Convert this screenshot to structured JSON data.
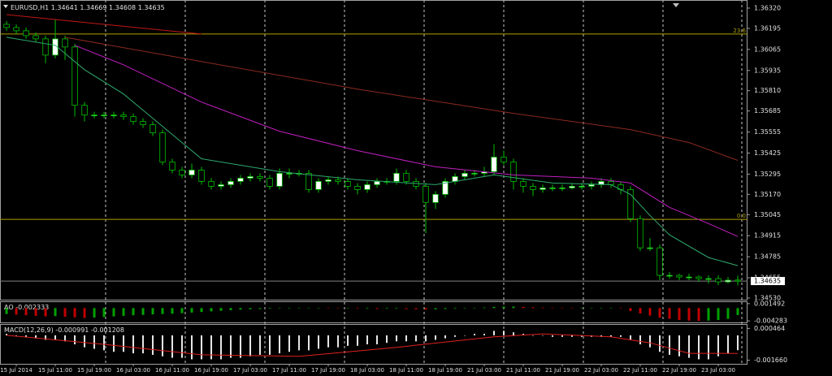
{
  "chart_data": [
    {
      "type": "candlestick",
      "title": "EURUSD,H1",
      "xlim": [
        -0.67,
        76
      ],
      "ylim": [
        1.34515,
        1.3637
      ],
      "yticks": [
        {
          "value": 1.3632,
          "label": "1.36320"
        },
        {
          "value": 1.36195,
          "label": "1.36195"
        },
        {
          "value": 1.36065,
          "label": "1.36065"
        },
        {
          "value": 1.35935,
          "label": "1.35935"
        },
        {
          "value": 1.3581,
          "label": "1.35810"
        },
        {
          "value": 1.35685,
          "label": "1.35685"
        },
        {
          "value": 1.35555,
          "label": "1.35555"
        },
        {
          "value": 1.35425,
          "label": "1.35425"
        },
        {
          "value": 1.35295,
          "label": "1.35295"
        },
        {
          "value": 1.3517,
          "label": "1.35170"
        },
        {
          "value": 1.35045,
          "label": "1.35045"
        },
        {
          "value": 1.34915,
          "label": "1.34915"
        },
        {
          "value": 1.34785,
          "label": "1.34785"
        },
        {
          "value": 1.34655,
          "label": "1.34655"
        },
        {
          "value": 1.3453,
          "label": "1.34530"
        }
      ],
      "color_up": "#ffffff",
      "color_down": "#000000",
      "wick_color": "#00c000",
      "open": [
        1.3622,
        1.362,
        1.3618,
        1.3615,
        1.3613,
        1.3603,
        1.3613,
        1.3608,
        1.3572,
        1.3566,
        1.3566,
        1.3566,
        1.3566,
        1.3565,
        1.3562,
        1.356,
        1.3555,
        1.3537,
        1.3532,
        1.3529,
        1.3532,
        1.3525,
        1.3522,
        1.3523,
        1.3525,
        1.3527,
        1.3528,
        1.3527,
        1.3522,
        1.353,
        1.353,
        1.353,
        1.352,
        1.3525,
        1.3526,
        1.3525,
        1.3522,
        1.352,
        1.3523,
        1.3525,
        1.3525,
        1.353,
        1.3525,
        1.3522,
        1.3512,
        1.3517,
        1.3525,
        1.3528,
        1.353,
        1.353,
        1.3531,
        1.354,
        1.3537,
        1.3525,
        1.3522,
        1.352,
        1.3521,
        1.3521,
        1.3521,
        1.3522,
        1.3522,
        1.3523,
        1.3525,
        1.3523,
        1.352,
        1.3502,
        1.3484,
        1.3484,
        1.3467,
        1.3467,
        1.3466,
        1.3466,
        1.3465,
        1.3465,
        1.3463,
        1.34641
      ],
      "high": [
        1.3624,
        1.3622,
        1.362,
        1.3617,
        1.3615,
        1.3625,
        1.3615,
        1.361,
        1.3574,
        1.3568,
        1.3568,
        1.3568,
        1.3568,
        1.3567,
        1.3564,
        1.3562,
        1.3557,
        1.3539,
        1.3534,
        1.3536,
        1.3534,
        1.3527,
        1.3525,
        1.3527,
        1.3529,
        1.353,
        1.353,
        1.3529,
        1.3533,
        1.3533,
        1.3532,
        1.3532,
        1.3527,
        1.3528,
        1.3528,
        1.3527,
        1.3524,
        1.3525,
        1.3527,
        1.3527,
        1.3533,
        1.3532,
        1.3527,
        1.3524,
        1.3519,
        1.3527,
        1.353,
        1.3532,
        1.3532,
        1.3534,
        1.3548,
        1.3544,
        1.3539,
        1.3527,
        1.3524,
        1.3523,
        1.3523,
        1.3523,
        1.3524,
        1.3524,
        1.3525,
        1.3527,
        1.3527,
        1.3525,
        1.3522,
        1.3504,
        1.349,
        1.3486,
        1.3469,
        1.3468,
        1.3468,
        1.3467,
        1.3467,
        1.3467,
        1.3466,
        1.34669
      ],
      "low": [
        1.3618,
        1.3616,
        1.3613,
        1.3611,
        1.3598,
        1.3601,
        1.36,
        1.3565,
        1.3562,
        1.3564,
        1.3564,
        1.3564,
        1.3563,
        1.356,
        1.3558,
        1.3553,
        1.3535,
        1.353,
        1.3527,
        1.3527,
        1.3523,
        1.352,
        1.352,
        1.3521,
        1.3523,
        1.3525,
        1.3525,
        1.352,
        1.352,
        1.3527,
        1.3528,
        1.3518,
        1.3518,
        1.3523,
        1.3523,
        1.352,
        1.3517,
        1.3518,
        1.3521,
        1.3523,
        1.3523,
        1.3523,
        1.352,
        1.3493,
        1.3508,
        1.3515,
        1.3523,
        1.3526,
        1.3528,
        1.3528,
        1.3529,
        1.3535,
        1.352,
        1.3518,
        1.3516,
        1.3518,
        1.3519,
        1.3519,
        1.352,
        1.352,
        1.352,
        1.3521,
        1.3521,
        1.3517,
        1.35,
        1.3482,
        1.3482,
        1.3464,
        1.3465,
        1.3464,
        1.3464,
        1.3463,
        1.3462,
        1.3461,
        1.3462,
        1.34608
      ],
      "close": [
        1.362,
        1.3618,
        1.3615,
        1.3613,
        1.3603,
        1.3613,
        1.3608,
        1.3572,
        1.3566,
        1.3566,
        1.3566,
        1.3566,
        1.3565,
        1.3562,
        1.356,
        1.3555,
        1.3537,
        1.3532,
        1.3529,
        1.3532,
        1.3525,
        1.3522,
        1.3523,
        1.3525,
        1.3527,
        1.3528,
        1.3527,
        1.3522,
        1.353,
        1.353,
        1.353,
        1.352,
        1.3525,
        1.3526,
        1.3525,
        1.3522,
        1.352,
        1.3523,
        1.3525,
        1.3525,
        1.353,
        1.3525,
        1.3522,
        1.3512,
        1.3517,
        1.3525,
        1.3528,
        1.353,
        1.353,
        1.3531,
        1.354,
        1.3537,
        1.3525,
        1.3522,
        1.352,
        1.3521,
        1.3521,
        1.3521,
        1.3522,
        1.3522,
        1.3523,
        1.3525,
        1.3523,
        1.352,
        1.3502,
        1.3484,
        1.3484,
        1.3467,
        1.3467,
        1.3466,
        1.3466,
        1.3465,
        1.3465,
        1.3463,
        1.3464,
        1.34635
      ],
      "series": [
        {
          "color": "#2eaa6e",
          "x": [
            0,
            5,
            8,
            12,
            16,
            20,
            28,
            36,
            44,
            50,
            56,
            62,
            64,
            66,
            68,
            72,
            75
          ],
          "values": [
            1.3614,
            1.3609,
            1.3594,
            1.3579,
            1.3559,
            1.3539,
            1.3531,
            1.3526,
            1.3523,
            1.3529,
            1.3524,
            1.3523,
            1.3517,
            1.3504,
            1.3492,
            1.3478,
            1.3473
          ]
        },
        {
          "color": "#c020c0",
          "x": [
            7,
            12,
            20,
            28,
            36,
            44,
            52,
            60,
            64,
            68,
            72,
            75
          ],
          "values": [
            1.3609,
            1.3597,
            1.3574,
            1.3556,
            1.3544,
            1.3534,
            1.3529,
            1.3527,
            1.3524,
            1.3509,
            1.3499,
            1.3491
          ]
        },
        {
          "color": "#8b2a20",
          "x": [
            6,
            20,
            36,
            52,
            64,
            70,
            75
          ],
          "values": [
            1.3614,
            1.3599,
            1.3582,
            1.3567,
            1.3557,
            1.3549,
            1.3538
          ]
        },
        {
          "color": "#c01818",
          "x": [
            0,
            20
          ],
          "values": [
            1.3628,
            1.3616
          ]
        }
      ],
      "levels": [
        {
          "value": 1.3616,
          "label": "23.6"
        },
        {
          "value": 1.35016,
          "label": "0.0"
        }
      ],
      "level_color": "#b0a000",
      "last_price": 1.34635
    },
    {
      "type": "bar",
      "title": "AO",
      "xlim": [
        -0.67,
        76
      ],
      "ylim": [
        -0.0048,
        0.002
      ],
      "yticks": [
        0.001492,
        -0.004283
      ],
      "color_up": "#00a000",
      "color_down": "#c00000",
      "values": [
        -0.002,
        -0.0022,
        -0.0024,
        -0.0026,
        -0.0028,
        -0.0027,
        -0.0029,
        -0.0031,
        -0.0033,
        -0.0032,
        -0.003,
        -0.0028,
        -0.0026,
        -0.0024,
        -0.0023,
        -0.0021,
        -0.002,
        -0.0019,
        -0.0017,
        -0.0015,
        -0.0013,
        -0.0011,
        -0.0009,
        -0.0007,
        -0.0005,
        -0.0004,
        -0.0003,
        -0.0002,
        -0.0001,
        -0.0001,
        0,
        0.0001,
        0.0001,
        0,
        -0.0001,
        -0.0001,
        -0.0002,
        -0.0002,
        -0.0003,
        -0.0002,
        -0.0002,
        -0.0003,
        -0.0004,
        -0.0005,
        -0.0004,
        -0.0003,
        -0.0002,
        -0.0001,
        0,
        0.0002,
        0.0004,
        0.0005,
        0.0005,
        0.0004,
        0.0003,
        0.0002,
        0.0001,
        0,
        -0.0001,
        -0.0001,
        -0.0001,
        0,
        0,
        -0.0001,
        -0.001,
        -0.0018,
        -0.0025,
        -0.0032,
        -0.0036,
        -0.004,
        -0.0042,
        -0.0043,
        -0.0042,
        -0.004,
        -0.0036,
        -0.002333
      ]
    },
    {
      "type": "macd",
      "title": "MACD(12,26,9)",
      "xlim": [
        -0.67,
        76
      ],
      "ylim": [
        -0.0019,
        0.0007
      ],
      "yticks": [
        0.000464,
        {
          "value": -0.00166,
          "label": "-0.001660"
        }
      ],
      "color": "#e8e8e8",
      "signal_color": "#e02020",
      "values": [
        0.0001,
        0,
        -0.0001,
        -0.0002,
        -0.0003,
        -0.0003,
        -0.0004,
        -0.0006,
        -0.0008,
        -0.0009,
        -0.001,
        -0.0011,
        -0.0011,
        -0.0012,
        -0.0012,
        -0.0013,
        -0.0014,
        -0.0015,
        -0.0015,
        -0.0016,
        -0.0016,
        -0.0016,
        -0.0016,
        -0.0015,
        -0.0015,
        -0.0014,
        -0.0013,
        -0.0013,
        -0.0012,
        -0.0011,
        -0.001,
        -0.001,
        -0.0009,
        -0.0008,
        -0.0008,
        -0.0007,
        -0.0007,
        -0.0006,
        -0.0006,
        -0.0005,
        -0.0004,
        -0.0004,
        -0.0004,
        -0.0004,
        -0.0003,
        -0.0002,
        -0.0001,
        0,
        0.0001,
        0.0001,
        0.0003,
        0.0003,
        0.0002,
        0.0001,
        0,
        0,
        -0.0001,
        -0.0001,
        -0.0001,
        -0.0001,
        -0.0001,
        -0.0001,
        -0.0001,
        -0.0001,
        -0.0003,
        -0.0006,
        -0.0008,
        -0.0011,
        -0.0013,
        -0.0014,
        -0.0015,
        -0.0016,
        -0.0016,
        -0.0014,
        -0.0012,
        -0.000991
      ],
      "signal": {
        "x": [
          0,
          10,
          20,
          30,
          40,
          50,
          55,
          62,
          66,
          70,
          75
        ],
        "values": [
          0,
          -0.0006,
          -0.0013,
          -0.0014,
          -0.0008,
          -0.0001,
          0.0001,
          -0.0001,
          -0.0005,
          -0.0012,
          -0.001208
        ]
      },
      "xticks": [
        {
          "value": 1,
          "label": "15 Jul 2014"
        },
        {
          "value": 5,
          "label": "15 Jul 11:00"
        },
        {
          "value": 9,
          "label": "15 Jul 19:00"
        },
        {
          "value": 13,
          "label": "16 Jul 03:00"
        },
        {
          "value": 17,
          "label": "16 Jul 11:00"
        },
        {
          "value": 21,
          "label": "16 Jul 19:00"
        },
        {
          "value": 25,
          "label": "17 Jul 03:00"
        },
        {
          "value": 29,
          "label": "17 Jul 11:00"
        },
        {
          "value": 33,
          "label": "17 Jul 19:00"
        },
        {
          "value": 37,
          "label": "18 Jul 03:00"
        },
        {
          "value": 41,
          "label": "18 Jul 11:00"
        },
        {
          "value": 45,
          "label": "18 Jul 19:00"
        },
        {
          "value": 49,
          "label": "21 Jul 03:00"
        },
        {
          "value": 53,
          "label": "21 Jul 11:00"
        },
        {
          "value": 57,
          "label": "21 Jul 19:00"
        },
        {
          "value": 61,
          "label": "22 Jul 03:00"
        },
        {
          "value": 65,
          "label": "22 Jul 11:00"
        },
        {
          "value": 69,
          "label": "22 Jul 19:00"
        },
        {
          "value": 73,
          "label": "23 Jul 03:00"
        }
      ]
    }
  ]
}
